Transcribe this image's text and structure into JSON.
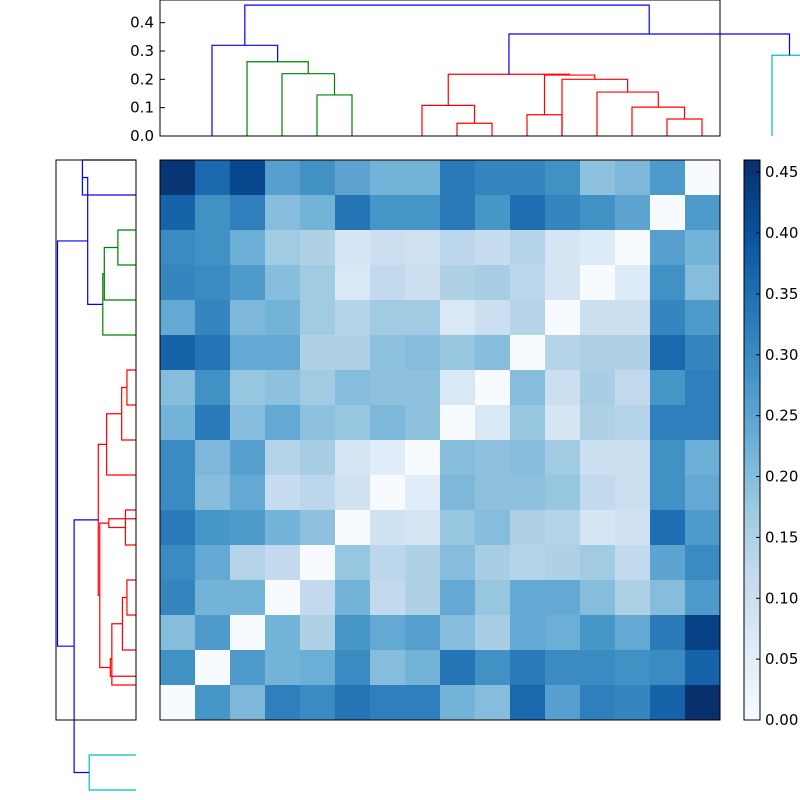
{
  "chart_data": [
    {
      "type": "dendrogram",
      "orientation": "top",
      "ylim": [
        0,
        0.48
      ],
      "yticks": [
        "0.0",
        "0.1",
        "0.2",
        "0.3",
        "0.4"
      ],
      "leaves": 16,
      "links": [
        {
          "x1": 4.5,
          "h1": 0.0,
          "x2": 5.5,
          "h2": 0.0,
          "h": 0.145,
          "color": "#008000"
        },
        {
          "x1": 3.5,
          "h1": 0.0,
          "x2": 5.0,
          "h2": 0.145,
          "h": 0.22,
          "color": "#008000"
        },
        {
          "x1": 2.5,
          "h1": 0.0,
          "x2": 4.25,
          "h2": 0.22,
          "h": 0.262,
          "color": "#008000"
        },
        {
          "x1": 1.5,
          "h1": 0.0,
          "x2": 3.375,
          "h2": 0.262,
          "h": 0.32,
          "color": "#0000ff"
        },
        {
          "x1": 8.5,
          "h1": 0.0,
          "x2": 9.5,
          "h2": 0.0,
          "h": 0.045,
          "color": "#ff0000"
        },
        {
          "x1": 7.5,
          "h1": 0.0,
          "x2": 9.0,
          "h2": 0.045,
          "h": 0.108,
          "color": "#ff0000"
        },
        {
          "x1": 10.5,
          "h1": 0.0,
          "x2": 11.5,
          "h2": 0.0,
          "h": 0.075,
          "color": "#ff0000"
        },
        {
          "x1": 14.5,
          "h1": 0.0,
          "x2": 15.5,
          "h2": 0.0,
          "h": 0.06,
          "color": "#ff0000"
        },
        {
          "x1": 13.5,
          "h1": 0.0,
          "x2": 15.0,
          "h2": 0.06,
          "h": 0.102,
          "color": "#ff0000"
        },
        {
          "x1": 12.5,
          "h1": 0.0,
          "x2": 14.25,
          "h2": 0.102,
          "h": 0.155,
          "color": "#ff0000"
        },
        {
          "x1": 11.5,
          "h1": 0.0,
          "x2": 13.375,
          "h2": 0.155,
          "h": 0.2,
          "color": "#ff0000"
        },
        {
          "x1": 11.0,
          "h1": 0.075,
          "x2": 12.4375,
          "h2": 0.2,
          "h": 0.215,
          "color": "#ff0000"
        },
        {
          "x1": 8.25,
          "h1": 0.108,
          "x2": 11.71875,
          "h2": 0.215,
          "h": 0.218,
          "color": "#ff0000"
        },
        {
          "x1": 17.5,
          "h1": 0.0,
          "x2": 18.5,
          "h2": 0.0,
          "h": 0.285,
          "color": "#00bfbf"
        },
        {
          "x1": 9.984375,
          "h1": 0.218,
          "x2": 18.0,
          "h2": 0.285,
          "h": 0.36,
          "color": "#0000ff"
        },
        {
          "x1": 2.4375,
          "h1": 0.32,
          "x2": 13.9921875,
          "h2": 0.36,
          "h": 0.462,
          "color": "#0000ff"
        }
      ]
    },
    {
      "type": "heatmap",
      "colormap": "Blues",
      "rows": 16,
      "cols": 16,
      "vmin": 0.0,
      "vmax": 0.46,
      "values": [
        [
          0.45,
          0.36,
          0.42,
          0.26,
          0.29,
          0.25,
          0.22,
          0.22,
          0.33,
          0.31,
          0.31,
          0.29,
          0.19,
          0.21,
          0.27,
          0.0
        ],
        [
          0.37,
          0.29,
          0.32,
          0.2,
          0.22,
          0.34,
          0.28,
          0.28,
          0.33,
          0.28,
          0.35,
          0.31,
          0.29,
          0.25,
          0.0,
          0.27
        ],
        [
          0.3,
          0.29,
          0.23,
          0.17,
          0.15,
          0.08,
          0.1,
          0.09,
          0.13,
          0.11,
          0.14,
          0.08,
          0.06,
          0.0,
          0.26,
          0.22
        ],
        [
          0.31,
          0.3,
          0.27,
          0.2,
          0.17,
          0.07,
          0.12,
          0.1,
          0.15,
          0.16,
          0.13,
          0.08,
          0.0,
          0.06,
          0.29,
          0.2
        ],
        [
          0.24,
          0.31,
          0.21,
          0.22,
          0.17,
          0.14,
          0.17,
          0.17,
          0.07,
          0.1,
          0.14,
          0.0,
          0.1,
          0.1,
          0.31,
          0.27
        ],
        [
          0.37,
          0.34,
          0.24,
          0.24,
          0.15,
          0.15,
          0.19,
          0.2,
          0.18,
          0.2,
          0.0,
          0.14,
          0.15,
          0.15,
          0.36,
          0.31
        ],
        [
          0.2,
          0.29,
          0.18,
          0.19,
          0.17,
          0.2,
          0.19,
          0.19,
          0.07,
          0.0,
          0.2,
          0.1,
          0.16,
          0.12,
          0.28,
          0.32
        ],
        [
          0.22,
          0.33,
          0.2,
          0.24,
          0.19,
          0.18,
          0.21,
          0.19,
          0.0,
          0.07,
          0.18,
          0.08,
          0.15,
          0.14,
          0.32,
          0.32
        ],
        [
          0.3,
          0.21,
          0.26,
          0.14,
          0.16,
          0.08,
          0.05,
          0.0,
          0.2,
          0.19,
          0.2,
          0.17,
          0.1,
          0.1,
          0.29,
          0.23
        ],
        [
          0.3,
          0.2,
          0.24,
          0.11,
          0.13,
          0.09,
          0.0,
          0.05,
          0.21,
          0.19,
          0.19,
          0.18,
          0.12,
          0.1,
          0.29,
          0.24
        ],
        [
          0.33,
          0.28,
          0.27,
          0.22,
          0.19,
          0.0,
          0.09,
          0.08,
          0.18,
          0.2,
          0.15,
          0.14,
          0.08,
          0.09,
          0.35,
          0.27
        ],
        [
          0.3,
          0.24,
          0.14,
          0.12,
          0.0,
          0.18,
          0.13,
          0.15,
          0.2,
          0.16,
          0.14,
          0.15,
          0.17,
          0.12,
          0.25,
          0.3
        ],
        [
          0.31,
          0.22,
          0.22,
          0.0,
          0.12,
          0.22,
          0.12,
          0.15,
          0.24,
          0.18,
          0.24,
          0.24,
          0.2,
          0.15,
          0.2,
          0.27
        ],
        [
          0.2,
          0.27,
          0.0,
          0.22,
          0.15,
          0.28,
          0.24,
          0.26,
          0.2,
          0.16,
          0.24,
          0.23,
          0.28,
          0.24,
          0.33,
          0.43
        ],
        [
          0.29,
          0.0,
          0.27,
          0.22,
          0.23,
          0.3,
          0.2,
          0.22,
          0.34,
          0.29,
          0.33,
          0.3,
          0.3,
          0.29,
          0.3,
          0.37
        ],
        [
          0.0,
          0.28,
          0.21,
          0.32,
          0.3,
          0.34,
          0.32,
          0.32,
          0.22,
          0.2,
          0.36,
          0.26,
          0.32,
          0.31,
          0.37,
          0.46
        ]
      ]
    },
    {
      "type": "dendrogram",
      "orientation": "left",
      "leaves": 16,
      "links": [
        {
          "a": 0.5,
          "da": 0.0,
          "b": 1.5,
          "db": 0.0,
          "d": 0.355,
          "color": "#0000ff"
        },
        {
          "a": 2.5,
          "da": 0.0,
          "b": 3.5,
          "db": 0.0,
          "d": 0.12,
          "color": "#008000"
        },
        {
          "a": 4.5,
          "da": 0.0,
          "b": 3.0,
          "db": 0.12,
          "d": 0.21,
          "color": "#008000"
        },
        {
          "a": 5.5,
          "da": 0.0,
          "b": 3.75,
          "db": 0.21,
          "d": 0.22,
          "color": "#008000"
        },
        {
          "a": 1.0,
          "da": 0.355,
          "b": 4.625,
          "db": 0.22,
          "d": 0.32,
          "color": "#0000ff"
        },
        {
          "a": 6.5,
          "da": 0.0,
          "b": 7.5,
          "db": 0.0,
          "d": 0.06,
          "color": "#ff0000"
        },
        {
          "a": 8.5,
          "da": 0.0,
          "b": 7.0,
          "db": 0.06,
          "d": 0.095,
          "color": "#ff0000"
        },
        {
          "a": 9.5,
          "da": 0.0,
          "b": 7.75,
          "db": 0.095,
          "d": 0.195,
          "color": "#ff0000"
        },
        {
          "a": 10.5,
          "da": 0.0,
          "b": 11.5,
          "db": 0.0,
          "d": 0.07,
          "color": "#ff0000"
        },
        {
          "a": 10.75,
          "da": 0.0,
          "b": 11.0,
          "db": 0.07,
          "d": 0.18,
          "color": "#ff0000"
        },
        {
          "a": 12.5,
          "da": 0.0,
          "b": 13.5,
          "db": 0.0,
          "d": 0.06,
          "color": "#ff0000"
        },
        {
          "a": 13.0,
          "da": 0.06,
          "b": 14.5,
          "db": 0.0,
          "d": 0.09,
          "color": "#ff0000"
        },
        {
          "a": 13.75,
          "da": 0.09,
          "b": 15.5,
          "db": 0.0,
          "d": 0.16,
          "color": "#ff0000"
        },
        {
          "a": 14.75,
          "da": 0.16,
          "b": 15.25,
          "db": 0.0,
          "d": 0.17,
          "color": "#ff0000"
        },
        {
          "a": 10.875,
          "da": 0.18,
          "b": 15.0,
          "db": 0.17,
          "d": 0.24,
          "color": "#ff0000"
        },
        {
          "a": 8.625,
          "da": 0.195,
          "b": 12.9375,
          "db": 0.24,
          "d": 0.25,
          "color": "#ff0000"
        },
        {
          "a": 17.5,
          "da": 0.0,
          "b": 18.5,
          "db": 0.0,
          "d": 0.31,
          "color": "#00bfbf"
        },
        {
          "a": 10.78125,
          "da": 0.25,
          "b": 18.0,
          "db": 0.31,
          "d": 0.41,
          "color": "#0000ff"
        },
        {
          "a": 2.8125,
          "da": 0.32,
          "b": 14.390625,
          "db": 0.41,
          "d": 0.52,
          "color": "#0000ff"
        }
      ],
      "xlim": [
        0,
        0.53
      ]
    },
    {
      "type": "colorbar",
      "vmin": 0.0,
      "vmax": 0.46,
      "ticks": [
        0.0,
        0.05,
        0.1,
        0.15,
        0.2,
        0.25,
        0.3,
        0.35,
        0.4,
        0.45
      ],
      "tick_labels": [
        "0.00",
        "0.05",
        "0.10",
        "0.15",
        "0.20",
        "0.25",
        "0.30",
        "0.35",
        "0.40",
        "0.45"
      ]
    }
  ]
}
